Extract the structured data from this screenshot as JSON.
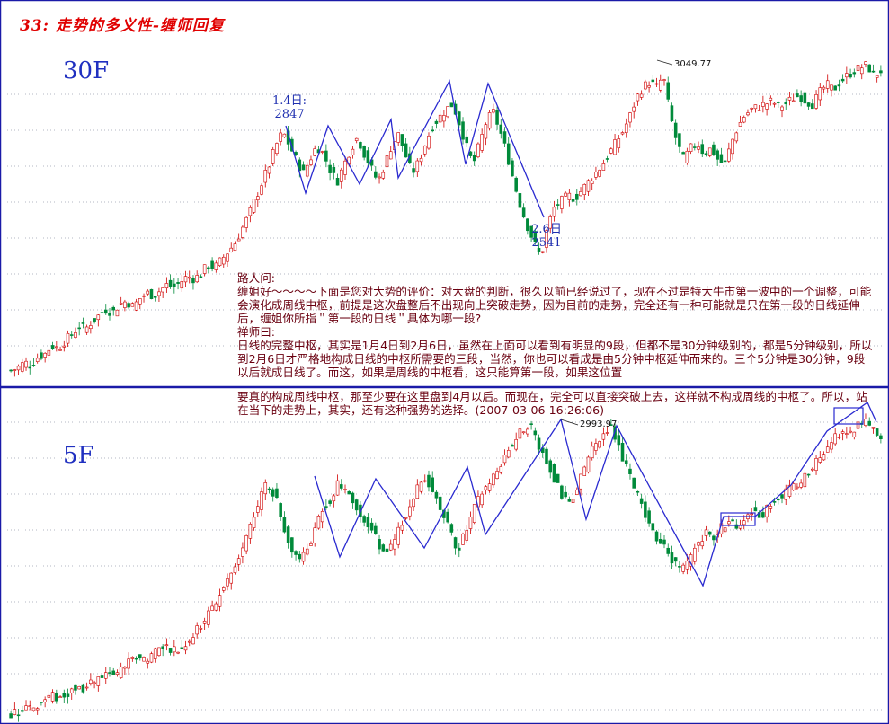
{
  "title": "33: 走势的多义性-缠师回复",
  "panels": [
    {
      "label": "30F",
      "annotations": [
        {
          "date": "1.4日:",
          "value": "2847"
        },
        {
          "date": "2.6日",
          "value": "2541"
        }
      ],
      "peak_label": "3049.77"
    },
    {
      "label": "5F",
      "peak_label": "2993.97"
    }
  ],
  "qa": {
    "question_header": "路人问:",
    "question": "缠姐好～～～～下面是您对大势的评价：对大盘的判断，很久以前已经说过了，现在不过是特大牛市第一波中的一个调整，可能会演化成周线中枢，前提是这次盘整后不出现向上突破走势，因为目前的走势，完全还有一种可能就是只在第一段的日线延伸后，缠姐你所指＂第一段的日线＂具体为哪一段?",
    "answer_header": "禅师曰:",
    "answer": "日线的完整中枢，其实是1月4日到2月6日，虽然在上面可以看到有明显的9段，但都不是30分钟级别的，都是5分钟级别，所以到2月6日才严格地构成日线的中枢所需要的三段，当然，你也可以看成是由5分钟中枢延伸而来的。三个5分钟是30分钟，9段以后就成日线了。而这，如果是周线的中枢看，这只能算第一段，如果这位置",
    "answer_cont": "要真的构成周线中枢，那至少要在这里盘到4月以后。而现在，完全可以直接突破上去，这样就不构成周线的中枢了。所以，站在当下的走势上，其实，还有这种强势的选择。(2007-03-06 16:26:06)"
  },
  "colors": {
    "up": "#d00000",
    "down": "#008a3a",
    "stroke": "#2a2ad0",
    "divider": "#1a1aa8",
    "title": "#e00000",
    "text": "#6a0010",
    "grid": "#9aa0b0"
  },
  "chart_data": [
    {
      "type": "candlestick",
      "title": "30F",
      "peak": 3049.77,
      "marked_points": [
        {
          "label": "1.4日",
          "value": 2847
        },
        {
          "label": "2.6日",
          "value": 2541
        }
      ],
      "stroke_path": [
        0.53,
        0.25,
        0.62,
        0.33,
        0.69,
        0.39,
        0.75,
        0.31,
        0.83,
        0.9,
        0.5,
        0.88,
        0.54,
        0.42,
        0.7,
        0.09,
        0.54,
        0.12,
        0.43,
        0.0
      ],
      "close": [
        0.04,
        0.05,
        0.07,
        0.06,
        0.09,
        0.1,
        0.13,
        0.12,
        0.15,
        0.17,
        0.2,
        0.19,
        0.22,
        0.24,
        0.26,
        0.25,
        0.28,
        0.29,
        0.27,
        0.3,
        0.32,
        0.31,
        0.33,
        0.35,
        0.34,
        0.36,
        0.38,
        0.37,
        0.39,
        0.42,
        0.41,
        0.44,
        0.47,
        0.5,
        0.55,
        0.6,
        0.66,
        0.72,
        0.78,
        0.85,
        0.9,
        0.85,
        0.8,
        0.75,
        0.8,
        0.85,
        0.82,
        0.76,
        0.72,
        0.78,
        0.84,
        0.88,
        0.82,
        0.77,
        0.72,
        0.78,
        0.85,
        0.89,
        0.82,
        0.75,
        0.79,
        0.86,
        0.92,
        0.95,
        0.98,
        1.0,
        0.93,
        0.85,
        0.78,
        0.86,
        0.94,
        0.97,
        0.9,
        0.82,
        0.72,
        0.63,
        0.56,
        0.5,
        0.45,
        0.56,
        0.63,
        0.65,
        0.67,
        0.66,
        0.69,
        0.72,
        0.75,
        0.78,
        0.82,
        0.86,
        0.9,
        0.95,
        1.02,
        1.06,
        1.08,
        1.06,
        1.1,
        0.96,
        0.86,
        0.8,
        0.84,
        0.86,
        0.82,
        0.84,
        0.8,
        0.78,
        0.86,
        0.92,
        0.96,
        0.98,
        0.99,
        1.0,
        1.01,
        0.99,
        1.0,
        1.02,
        1.03,
        1.01,
        1.0,
        1.04,
        1.07,
        1.05,
        1.08,
        1.1,
        1.12,
        1.13,
        1.14,
        1.1,
        1.12
      ]
    },
    {
      "type": "candlestick",
      "title": "5F",
      "peak": 2993.97,
      "stroke_path": [
        0.49,
        0.27,
        0.53,
        0.35,
        0.58,
        0.12,
        0.6,
        0.15,
        0.64,
        0.55,
        0.62,
        0.41,
        0.77,
        0.76,
        0.9,
        0.92,
        0.58,
        0.92,
        0.98,
        0.55
      ],
      "boxes": [
        {
          "from": 0.805,
          "to": 0.84,
          "lo": 0.55,
          "hi": 0.6
        },
        {
          "from": 0.935,
          "to": 0.962,
          "lo": 0.94,
          "hi": 0.98
        }
      ],
      "close": [
        0.02,
        0.03,
        0.05,
        0.04,
        0.06,
        0.08,
        0.07,
        0.09,
        0.11,
        0.1,
        0.12,
        0.14,
        0.16,
        0.15,
        0.18,
        0.2,
        0.22,
        0.21,
        0.24,
        0.26,
        0.25,
        0.24,
        0.27,
        0.3,
        0.34,
        0.38,
        0.43,
        0.48,
        0.54,
        0.6,
        0.68,
        0.76,
        0.84,
        0.8,
        0.7,
        0.62,
        0.56,
        0.6,
        0.66,
        0.74,
        0.78,
        0.84,
        0.8,
        0.76,
        0.72,
        0.68,
        0.62,
        0.58,
        0.62,
        0.7,
        0.76,
        0.82,
        0.86,
        0.8,
        0.74,
        0.66,
        0.6,
        0.66,
        0.74,
        0.8,
        0.84,
        0.88,
        0.94,
        0.98,
        1.02,
        1.05,
        0.98,
        0.92,
        0.86,
        0.8,
        0.76,
        0.82,
        0.9,
        0.96,
        1.0,
        1.04,
        0.98,
        0.9,
        0.82,
        0.76,
        0.7,
        0.64,
        0.6,
        0.56,
        0.52,
        0.56,
        0.62,
        0.66,
        0.64,
        0.68,
        0.7,
        0.68,
        0.72,
        0.74,
        0.72,
        0.76,
        0.78,
        0.8,
        0.82,
        0.84,
        0.88,
        0.92,
        0.96,
        1.0,
        1.02,
        1.0,
        1.04,
        1.06,
        1.02,
        0.98
      ]
    }
  ]
}
